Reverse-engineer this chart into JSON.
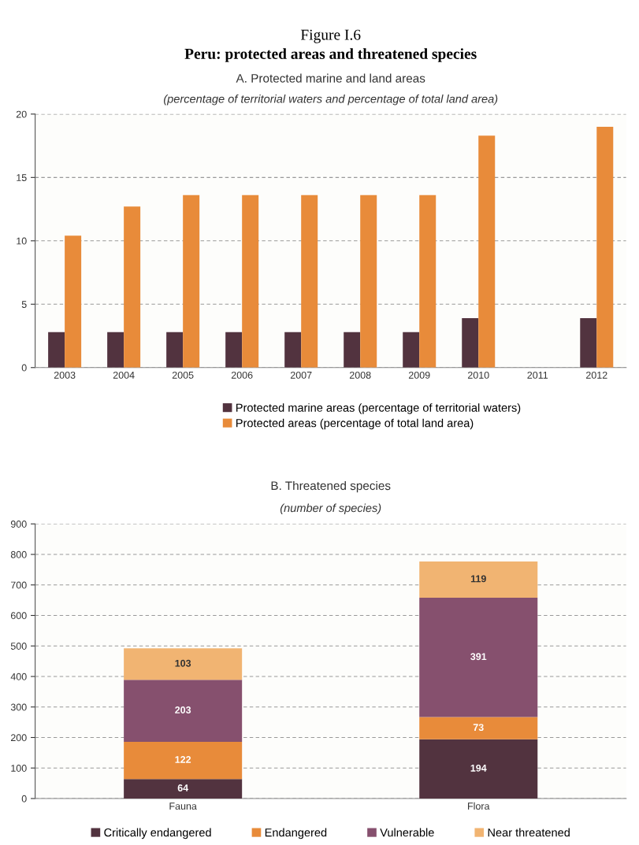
{
  "chart_data": [
    {
      "type": "bar",
      "title": "A. Protected marine and land areas",
      "subtitle": "(percentage of territorial waters and percentage of total land area)",
      "annotations": [
        "Figure I.6",
        "Peru: protected areas and threatened species"
      ],
      "categories": [
        "2003",
        "2004",
        "2005",
        "2006",
        "2007",
        "2008",
        "2009",
        "2010",
        "2011",
        "2012"
      ],
      "series": [
        {
          "name": "Protected marine areas (percentage of territorial waters)",
          "color": "#52333f",
          "values": [
            2.8,
            2.8,
            2.8,
            2.8,
            2.8,
            2.8,
            2.8,
            3.9,
            null,
            3.9
          ]
        },
        {
          "name": "Protected areas (percentage of total land area)",
          "color": "#e88b3a",
          "values": [
            10.4,
            12.7,
            13.6,
            13.6,
            13.6,
            13.6,
            13.6,
            18.3,
            null,
            19.0
          ]
        }
      ],
      "ylim": [
        0,
        20
      ],
      "yticks": [
        0,
        5,
        10,
        15,
        20
      ],
      "grid": "y",
      "legend": "bottom"
    },
    {
      "type": "bar",
      "title": "B. Threatened species",
      "subtitle": "(number of species)",
      "stacked": true,
      "categories": [
        "Fauna",
        "Flora"
      ],
      "series": [
        {
          "name": "Critically endangered",
          "color": "#52333f",
          "values": [
            64,
            194
          ]
        },
        {
          "name": "Endangered",
          "color": "#e88b3a",
          "values": [
            122,
            73
          ]
        },
        {
          "name": "Vulnerable",
          "color": "#86506e",
          "values": [
            203,
            391
          ]
        },
        {
          "name": "Near threatened",
          "color": "#f1b472",
          "values": [
            103,
            119
          ]
        }
      ],
      "ylim": [
        0,
        900
      ],
      "yticks": [
        0,
        100,
        200,
        300,
        400,
        500,
        600,
        700,
        800,
        900
      ],
      "grid": "y",
      "legend": "bottom",
      "data_labels": true
    }
  ]
}
